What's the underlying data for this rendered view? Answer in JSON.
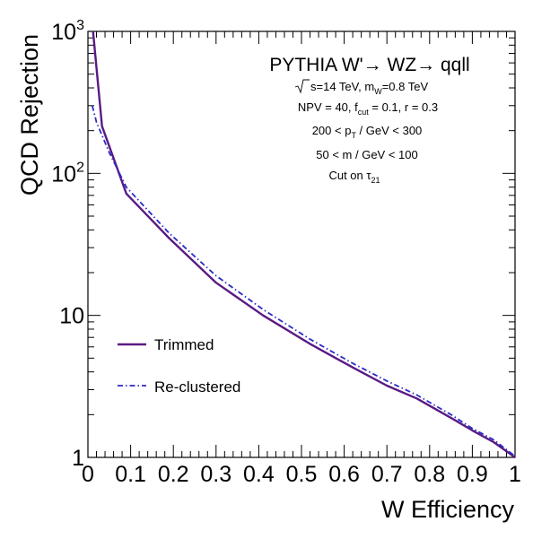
{
  "chart_data": {
    "type": "line",
    "title": "",
    "xlabel": "W Efficiency",
    "ylabel": "QCD Rejection",
    "xlim": [
      0,
      1
    ],
    "ylim": [
      1,
      1000
    ],
    "yscale": "log",
    "grid": false,
    "x_ticks": [
      {
        "value": 0,
        "label": "0"
      },
      {
        "value": 0.1,
        "label": "0.1"
      },
      {
        "value": 0.2,
        "label": "0.2"
      },
      {
        "value": 0.3,
        "label": "0.3"
      },
      {
        "value": 0.4,
        "label": "0.4"
      },
      {
        "value": 0.5,
        "label": "0.5"
      },
      {
        "value": 0.6,
        "label": "0.6"
      },
      {
        "value": 0.7,
        "label": "0.7"
      },
      {
        "value": 0.8,
        "label": "0.8"
      },
      {
        "value": 0.9,
        "label": "0.9"
      },
      {
        "value": 1,
        "label": "1"
      }
    ],
    "y_major_ticks": [
      {
        "value": 1,
        "label": "1",
        "exponent": ""
      },
      {
        "value": 10,
        "label": "10",
        "exponent": ""
      },
      {
        "value": 100,
        "label": "10",
        "exponent": "2"
      },
      {
        "value": 1000,
        "label": "10",
        "exponent": "3"
      }
    ],
    "series": [
      {
        "name": "Trimmed",
        "color": "#5a1a84",
        "style": "solid",
        "points": [
          {
            "x": 0.012,
            "y": 1000
          },
          {
            "x": 0.033,
            "y": 215
          },
          {
            "x": 0.09,
            "y": 72
          },
          {
            "x": 0.19,
            "y": 35
          },
          {
            "x": 0.3,
            "y": 17
          },
          {
            "x": 0.41,
            "y": 10
          },
          {
            "x": 0.52,
            "y": 6.3
          },
          {
            "x": 0.62,
            "y": 4.3
          },
          {
            "x": 0.7,
            "y": 3.2
          },
          {
            "x": 0.77,
            "y": 2.6
          },
          {
            "x": 0.85,
            "y": 1.9
          },
          {
            "x": 0.9,
            "y": 1.55
          },
          {
            "x": 0.95,
            "y": 1.28
          },
          {
            "x": 1.0,
            "y": 1.0
          }
        ]
      },
      {
        "name": "Re-clustered",
        "color": "#2b2bc8",
        "style": "dash-dot",
        "points": [
          {
            "x": 0.01,
            "y": 300
          },
          {
            "x": 0.02,
            "y": 230
          },
          {
            "x": 0.05,
            "y": 140
          },
          {
            "x": 0.09,
            "y": 80
          },
          {
            "x": 0.19,
            "y": 38
          },
          {
            "x": 0.3,
            "y": 19
          },
          {
            "x": 0.41,
            "y": 11
          },
          {
            "x": 0.52,
            "y": 6.8
          },
          {
            "x": 0.62,
            "y": 4.6
          },
          {
            "x": 0.7,
            "y": 3.45
          },
          {
            "x": 0.77,
            "y": 2.75
          },
          {
            "x": 0.85,
            "y": 2.0
          },
          {
            "x": 0.9,
            "y": 1.6
          },
          {
            "x": 0.95,
            "y": 1.33
          },
          {
            "x": 1.0,
            "y": 1.02
          }
        ]
      }
    ],
    "annotations": {
      "process": "PYTHIA W'→ WZ→ qqll",
      "line1": {
        "pre": "s=14 TeV, m",
        "sub": "W",
        "post": "=0.8 TeV"
      },
      "line2": {
        "pre": "NPV = 40, f",
        "sub": "cut",
        "post": " = 0.1, r = 0.3"
      },
      "line3": {
        "pre": "200 < p",
        "sub": "T",
        "post": " / GeV < 300"
      },
      "line4": "50 < m / GeV < 100",
      "line5": {
        "pre": "Cut on τ",
        "sub": "21"
      }
    },
    "legend": {
      "placement": "lower-left",
      "entries": [
        "Trimmed",
        "Re-clustered"
      ]
    }
  }
}
